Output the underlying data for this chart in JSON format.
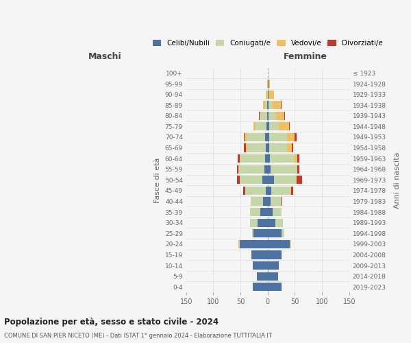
{
  "age_groups": [
    "0-4",
    "5-9",
    "10-14",
    "15-19",
    "20-24",
    "25-29",
    "30-34",
    "35-39",
    "40-44",
    "45-49",
    "50-54",
    "55-59",
    "60-64",
    "65-69",
    "70-74",
    "75-79",
    "80-84",
    "85-89",
    "90-94",
    "95-99",
    "100+"
  ],
  "birth_years": [
    "2019-2023",
    "2014-2018",
    "2009-2013",
    "2004-2008",
    "1999-2003",
    "1994-1998",
    "1989-1993",
    "1984-1988",
    "1979-1983",
    "1974-1978",
    "1969-1973",
    "1964-1968",
    "1959-1963",
    "1954-1958",
    "1949-1953",
    "1944-1948",
    "1939-1943",
    "1934-1938",
    "1929-1933",
    "1924-1928",
    "≤ 1923"
  ],
  "colors": {
    "celibi": "#4c72a4",
    "coniugati": "#c5d6a8",
    "vedovi": "#f0c060",
    "divorziati": "#c0392b"
  },
  "males": {
    "celibi": [
      27,
      20,
      27,
      30,
      51,
      26,
      19,
      13,
      8,
      4,
      10,
      6,
      5,
      3,
      5,
      2,
      1,
      1,
      0,
      0,
      0
    ],
    "coniugati": [
      0,
      0,
      0,
      0,
      2,
      3,
      13,
      19,
      23,
      37,
      42,
      47,
      45,
      35,
      34,
      20,
      12,
      4,
      2,
      0,
      0
    ],
    "vedovi": [
      0,
      0,
      0,
      0,
      1,
      0,
      0,
      0,
      0,
      0,
      0,
      1,
      1,
      2,
      3,
      4,
      2,
      4,
      2,
      1,
      0
    ],
    "divorziati": [
      0,
      0,
      0,
      0,
      0,
      0,
      0,
      0,
      0,
      4,
      5,
      3,
      4,
      4,
      2,
      0,
      1,
      0,
      0,
      0,
      0
    ]
  },
  "females": {
    "nubili": [
      26,
      19,
      20,
      26,
      40,
      26,
      14,
      9,
      5,
      6,
      12,
      5,
      4,
      3,
      3,
      3,
      1,
      2,
      1,
      1,
      0
    ],
    "coniugate": [
      0,
      0,
      0,
      0,
      2,
      4,
      14,
      16,
      20,
      36,
      40,
      48,
      45,
      33,
      32,
      18,
      14,
      7,
      1,
      0,
      0
    ],
    "vedove": [
      0,
      0,
      0,
      0,
      1,
      0,
      0,
      0,
      1,
      1,
      1,
      2,
      5,
      9,
      14,
      18,
      15,
      15,
      10,
      3,
      0
    ],
    "divorziate": [
      0,
      0,
      0,
      0,
      0,
      0,
      0,
      0,
      1,
      4,
      10,
      3,
      4,
      2,
      4,
      1,
      2,
      1,
      0,
      0,
      0
    ]
  },
  "xlim": 150,
  "title": "Popolazione per età, sesso e stato civile - 2024",
  "subtitle": "COMUNE DI SAN PIER NICETO (ME) - Dati ISTAT 1° gennaio 2024 - Elaborazione TUTTITALIA.IT",
  "ylabel_left": "Fasce di età",
  "ylabel_right": "Anni di nascita",
  "xlabel_left": "Maschi",
  "xlabel_right": "Femmine",
  "legend_labels": [
    "Celibi/Nubili",
    "Coniugati/e",
    "Vedovi/e",
    "Divorziati/e"
  ],
  "bg_color": "#f5f5f5",
  "grid_color": "#cccccc"
}
